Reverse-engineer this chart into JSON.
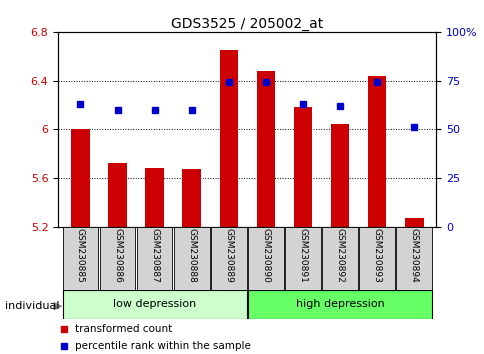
{
  "title": "GDS3525 / 205002_at",
  "samples": [
    "GSM230885",
    "GSM230886",
    "GSM230887",
    "GSM230888",
    "GSM230889",
    "GSM230890",
    "GSM230891",
    "GSM230892",
    "GSM230893",
    "GSM230894"
  ],
  "bar_values": [
    6.0,
    5.72,
    5.68,
    5.67,
    6.65,
    6.48,
    6.18,
    6.04,
    6.44,
    5.27
  ],
  "percentile_values": [
    63,
    60,
    60,
    60,
    74,
    74,
    63,
    62,
    74,
    51
  ],
  "ylim_left": [
    5.2,
    6.8
  ],
  "ylim_right": [
    0,
    100
  ],
  "yticks_left": [
    5.2,
    5.6,
    6.0,
    6.4,
    6.8
  ],
  "ytick_labels_left": [
    "5.2",
    "5.6",
    "6",
    "6.4",
    "6.8"
  ],
  "yticks_right": [
    0,
    25,
    50,
    75,
    100
  ],
  "ytick_labels_right": [
    "0",
    "25",
    "50",
    "75",
    "100%"
  ],
  "bar_color": "#cc0000",
  "dot_color": "#0000cc",
  "group1_label": "low depression",
  "group2_label": "high depression",
  "group1_indices": [
    0,
    1,
    2,
    3,
    4
  ],
  "group2_indices": [
    5,
    6,
    7,
    8,
    9
  ],
  "group1_color": "#ccffcc",
  "group2_color": "#66ff66",
  "legend_bar_label": "transformed count",
  "legend_dot_label": "percentile rank within the sample",
  "individual_label": "individual",
  "bar_bottom": 5.2,
  "bar_width": 0.5,
  "tick_label_color_left": "#cc0000",
  "tick_label_color_right": "#0000cc",
  "sample_box_color": "#d3d3d3",
  "arrow_color": "#888888"
}
